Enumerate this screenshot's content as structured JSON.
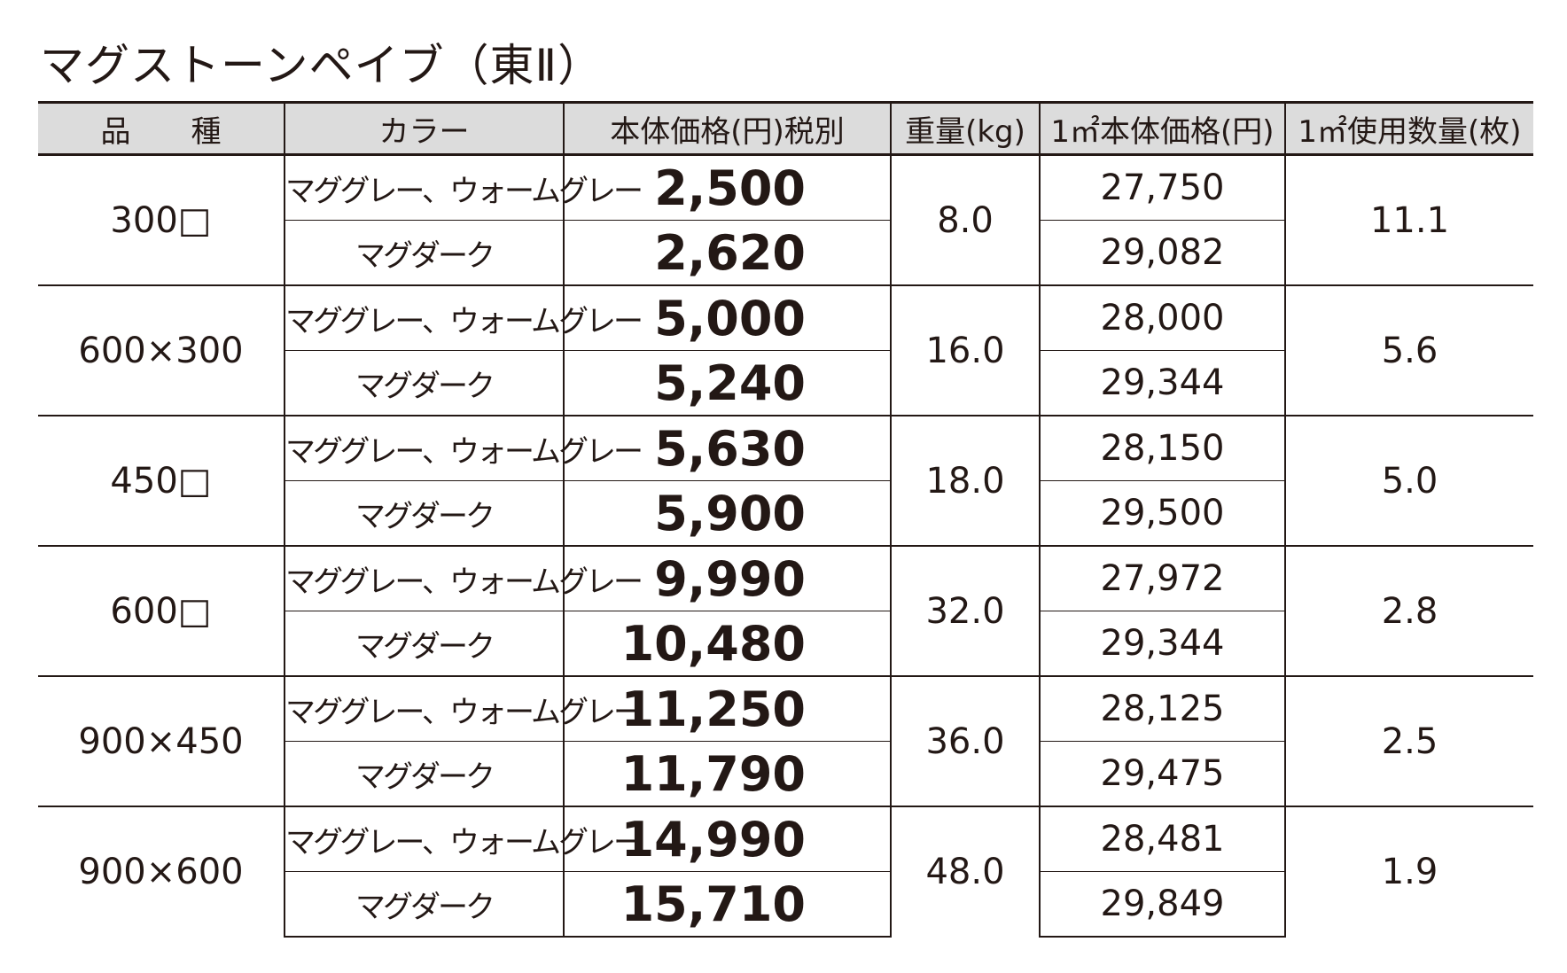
{
  "header": {
    "title": "マグストーンペイブ（東Ⅱ）"
  },
  "table": {
    "columns": [
      "品　　種",
      "カラー",
      "本体価格(円)税別",
      "重量(kg)",
      "1㎡本体価格(円)",
      "1㎡使用数量(枚)"
    ],
    "groups": [
      {
        "size": "300□",
        "weight": "8.0",
        "quantity": "11.1",
        "items": [
          {
            "color": "マググレー、ウォームグレー",
            "price": "2,500",
            "per_m2": "27,750"
          },
          {
            "color": "マグダーク",
            "price": "2,620",
            "per_m2": "29,082"
          }
        ]
      },
      {
        "size": "600×300",
        "weight": "16.0",
        "quantity": "5.6",
        "items": [
          {
            "color": "マググレー、ウォームグレー",
            "price": "5,000",
            "per_m2": "28,000"
          },
          {
            "color": "マグダーク",
            "price": "5,240",
            "per_m2": "29,344"
          }
        ]
      },
      {
        "size": "450□",
        "weight": "18.0",
        "quantity": "5.0",
        "items": [
          {
            "color": "マググレー、ウォームグレー",
            "price": "5,630",
            "per_m2": "28,150"
          },
          {
            "color": "マグダーク",
            "price": "5,900",
            "per_m2": "29,500"
          }
        ]
      },
      {
        "size": "600□",
        "weight": "32.0",
        "quantity": "2.8",
        "items": [
          {
            "color": "マググレー、ウォームグレー",
            "price": "9,990",
            "per_m2": "27,972"
          },
          {
            "color": "マグダーク",
            "price": "10,480",
            "per_m2": "29,344"
          }
        ]
      },
      {
        "size": "900×450",
        "weight": "36.0",
        "quantity": "2.5",
        "items": [
          {
            "color": "マググレー、ウォームグレー",
            "price": "11,250",
            "per_m2": "28,125"
          },
          {
            "color": "マグダーク",
            "price": "11,790",
            "per_m2": "29,475"
          }
        ]
      },
      {
        "size": "900×600",
        "weight": "48.0",
        "quantity": "1.9",
        "items": [
          {
            "color": "マググレー、ウォームグレー",
            "price": "14,990",
            "per_m2": "28,481"
          },
          {
            "color": "マグダーク",
            "price": "15,710",
            "per_m2": "29,849"
          }
        ]
      }
    ]
  }
}
